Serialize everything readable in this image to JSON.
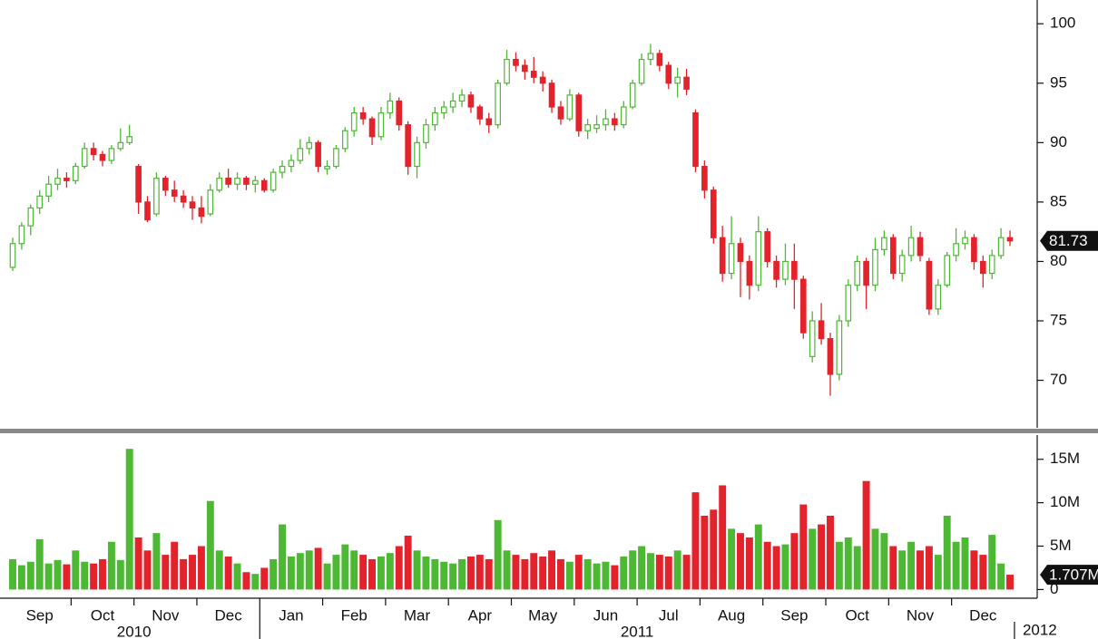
{
  "chart_data": {
    "type": "candlestick",
    "up_color": "#4db833",
    "down_color": "#e3222b",
    "categories": [
      "Sep",
      "Sep",
      "Sep",
      "Sep",
      "Sep",
      "Sep",
      "Sep",
      "Oct",
      "Oct",
      "Oct",
      "Oct",
      "Oct",
      "Oct",
      "Oct",
      "Nov",
      "Nov",
      "Nov",
      "Nov",
      "Nov",
      "Nov",
      "Nov",
      "Dec",
      "Dec",
      "Dec",
      "Dec",
      "Dec",
      "Dec",
      "Dec",
      "Jan",
      "Jan",
      "Jan",
      "Jan",
      "Jan",
      "Jan",
      "Jan",
      "Feb",
      "Feb",
      "Feb",
      "Feb",
      "Feb",
      "Feb",
      "Feb",
      "Mar",
      "Mar",
      "Mar",
      "Mar",
      "Mar",
      "Mar",
      "Mar",
      "Apr",
      "Apr",
      "Apr",
      "Apr",
      "Apr",
      "Apr",
      "Apr",
      "May",
      "May",
      "May",
      "May",
      "May",
      "May",
      "May",
      "Jun",
      "Jun",
      "Jun",
      "Jun",
      "Jun",
      "Jun",
      "Jun",
      "Jul",
      "Jul",
      "Jul",
      "Jul",
      "Jul",
      "Jul",
      "Jul",
      "Aug",
      "Aug",
      "Aug",
      "Aug",
      "Aug",
      "Aug",
      "Aug",
      "Sep",
      "Sep",
      "Sep",
      "Sep",
      "Sep",
      "Sep",
      "Sep",
      "Oct",
      "Oct",
      "Oct",
      "Oct",
      "Oct",
      "Oct",
      "Oct",
      "Nov",
      "Nov",
      "Nov",
      "Nov",
      "Nov",
      "Nov",
      "Nov",
      "Dec",
      "Dec",
      "Dec",
      "Dec",
      "Dec",
      "Dec",
      "Dec"
    ],
    "years": [
      "2010",
      "2011",
      "2012"
    ],
    "ohlc": [
      [
        79.5,
        82,
        79.2,
        81.5
      ],
      [
        81.5,
        83.3,
        81,
        83
      ],
      [
        83,
        84.8,
        82.2,
        84.5
      ],
      [
        84.5,
        86,
        84,
        85.5
      ],
      [
        85.5,
        87.2,
        85,
        86.5
      ],
      [
        86.5,
        87.8,
        86,
        87
      ],
      [
        87,
        87.5,
        86.2,
        86.8
      ],
      [
        86.8,
        88.3,
        86.5,
        88
      ],
      [
        88,
        90,
        87.8,
        89.5
      ],
      [
        89.5,
        90,
        88.5,
        89
      ],
      [
        89,
        89.3,
        88,
        88.5
      ],
      [
        88.5,
        89.8,
        88.2,
        89.5
      ],
      [
        89.5,
        91.2,
        89.3,
        90
      ],
      [
        90,
        91.5,
        89.8,
        90.5
      ],
      [
        88,
        88.2,
        84,
        85
      ],
      [
        85,
        85.5,
        83.3,
        83.5
      ],
      [
        84,
        87.5,
        83.8,
        87
      ],
      [
        87,
        87.2,
        85.5,
        86
      ],
      [
        86,
        86.8,
        85,
        85.5
      ],
      [
        85.5,
        86,
        84.5,
        85
      ],
      [
        85,
        85.5,
        83.5,
        84.5
      ],
      [
        84.5,
        85.5,
        83.2,
        83.8
      ],
      [
        84,
        86.5,
        83.8,
        86
      ],
      [
        86,
        87.5,
        85.8,
        87
      ],
      [
        87,
        87.8,
        86.2,
        86.5
      ],
      [
        86.5,
        87.5,
        86,
        87
      ],
      [
        87,
        87.2,
        86,
        86.5
      ],
      [
        86.5,
        87.2,
        85.8,
        86.8
      ],
      [
        86.8,
        87,
        85.8,
        86
      ],
      [
        86,
        87.8,
        85.8,
        87.5
      ],
      [
        87.5,
        88.5,
        87,
        88
      ],
      [
        88,
        89,
        87.5,
        88.5
      ],
      [
        88.5,
        90.3,
        88.2,
        89.5
      ],
      [
        89.5,
        90.5,
        89,
        90
      ],
      [
        90,
        90.2,
        87.5,
        88
      ],
      [
        87.8,
        88.5,
        87.3,
        88
      ],
      [
        88,
        89.8,
        87.8,
        89.5
      ],
      [
        89.5,
        91.3,
        89.2,
        91
      ],
      [
        91,
        93,
        90.5,
        92.5
      ],
      [
        92.5,
        93,
        91.5,
        92
      ],
      [
        92,
        92.2,
        89.8,
        90.5
      ],
      [
        90.5,
        93,
        90.2,
        92.5
      ],
      [
        92.5,
        94.2,
        92,
        93.5
      ],
      [
        93.5,
        93.8,
        91,
        91.5
      ],
      [
        91.5,
        91.8,
        87.3,
        88
      ],
      [
        88,
        90.5,
        87,
        90
      ],
      [
        90,
        92,
        89.5,
        91.5
      ],
      [
        91.5,
        93,
        91,
        92.5
      ],
      [
        92.5,
        93.5,
        92,
        93
      ],
      [
        93,
        94.2,
        92.5,
        93.5
      ],
      [
        93.5,
        94.5,
        93,
        94
      ],
      [
        94,
        94.3,
        92.5,
        93
      ],
      [
        93,
        93.2,
        91.5,
        92
      ],
      [
        92,
        92.5,
        90.8,
        91.5
      ],
      [
        91.5,
        95.3,
        91.2,
        95
      ],
      [
        95,
        97.8,
        94.8,
        97
      ],
      [
        97,
        97.6,
        96,
        96.5
      ],
      [
        96.5,
        97,
        95.3,
        96
      ],
      [
        96,
        97.2,
        95,
        95.5
      ],
      [
        95.5,
        96,
        94.3,
        95
      ],
      [
        95,
        95.3,
        92.5,
        93
      ],
      [
        93,
        93.5,
        91.5,
        92
      ],
      [
        92,
        94.5,
        91.8,
        94
      ],
      [
        94,
        94.2,
        90.5,
        91
      ],
      [
        91,
        92,
        90.3,
        91.5
      ],
      [
        91.2,
        92.3,
        90.8,
        91.5
      ],
      [
        91.5,
        92.8,
        91,
        92
      ],
      [
        92,
        92.5,
        91,
        91.5
      ],
      [
        91.5,
        93.5,
        91.2,
        93
      ],
      [
        93,
        95.3,
        92.8,
        95
      ],
      [
        95,
        97.5,
        94.8,
        97
      ],
      [
        97,
        98.3,
        96.5,
        97.5
      ],
      [
        97.5,
        97.8,
        96,
        96.5
      ],
      [
        96.5,
        96.8,
        94.5,
        95
      ],
      [
        95,
        96.3,
        93.8,
        95.5
      ],
      [
        95.5,
        96.2,
        94,
        94.5
      ],
      [
        92.5,
        92.8,
        87.5,
        88
      ],
      [
        88,
        88.5,
        85.3,
        86
      ],
      [
        86,
        86.3,
        81.5,
        82
      ],
      [
        82,
        83,
        78.3,
        79
      ],
      [
        79,
        83.8,
        78.5,
        81.5
      ],
      [
        81.5,
        82,
        77,
        80
      ],
      [
        80,
        80.5,
        76.8,
        78
      ],
      [
        78,
        83.8,
        77.5,
        82.5
      ],
      [
        82.5,
        82.8,
        79.5,
        80
      ],
      [
        80,
        80.5,
        77.8,
        78.5
      ],
      [
        78.5,
        81.5,
        78,
        80
      ],
      [
        80,
        81.5,
        76,
        78.5
      ],
      [
        78.5,
        78.8,
        73.5,
        74
      ],
      [
        72,
        75.8,
        71.5,
        75
      ],
      [
        75,
        76.5,
        73,
        73.5
      ],
      [
        73.5,
        74,
        68.7,
        70.5
      ],
      [
        70.5,
        75.5,
        70,
        75
      ],
      [
        75,
        78.5,
        74.5,
        78
      ],
      [
        78,
        80.5,
        77.5,
        80
      ],
      [
        80,
        80.3,
        76,
        78
      ],
      [
        78,
        82,
        77.5,
        81
      ],
      [
        81,
        82.6,
        80.5,
        82
      ],
      [
        82,
        82.3,
        78.5,
        79
      ],
      [
        79,
        81,
        78.3,
        80.5
      ],
      [
        80.5,
        83,
        80,
        82
      ],
      [
        82,
        82.5,
        80,
        80.5
      ],
      [
        80,
        80.3,
        75.5,
        76
      ],
      [
        76,
        78.5,
        75.5,
        78
      ],
      [
        78,
        80.8,
        77.8,
        80.5
      ],
      [
        80.5,
        82.8,
        80,
        81.5
      ],
      [
        81.5,
        82.6,
        81,
        82
      ],
      [
        82,
        82.3,
        79.3,
        80
      ],
      [
        80,
        80.5,
        77.8,
        79
      ],
      [
        79,
        81,
        78.5,
        80.5
      ],
      [
        80.5,
        82.8,
        80.2,
        82
      ],
      [
        82,
        82.6,
        81.3,
        81.73
      ]
    ],
    "ylim": [
      66,
      102
    ],
    "yticks": [
      70,
      75,
      80,
      85,
      90,
      95,
      100
    ],
    "volume": {
      "values": [
        3500000,
        2800000,
        3200000,
        5800000,
        3000000,
        3400000,
        2900000,
        4500000,
        3200000,
        3000000,
        3500000,
        5500000,
        3400000,
        16200000,
        6000000,
        4500000,
        6500000,
        4000000,
        5500000,
        3500000,
        4000000,
        5000000,
        10200000,
        4500000,
        3800000,
        3000000,
        2000000,
        1800000,
        2500000,
        3500000,
        7500000,
        3800000,
        4200000,
        4500000,
        4800000,
        3000000,
        4000000,
        5200000,
        4500000,
        4000000,
        3500000,
        3800000,
        4200000,
        5000000,
        6200000,
        4500000,
        3800000,
        3500000,
        3200000,
        3000000,
        3500000,
        3800000,
        4000000,
        3500000,
        8000000,
        4500000,
        4000000,
        3500000,
        4200000,
        3800000,
        4500000,
        3500000,
        3200000,
        4000000,
        3500000,
        3000000,
        3200000,
        2800000,
        3800000,
        4500000,
        5000000,
        4200000,
        4000000,
        3800000,
        4500000,
        4000000,
        11200000,
        8500000,
        9200000,
        12000000,
        7000000,
        6500000,
        6000000,
        7500000,
        5500000,
        5000000,
        5200000,
        6500000,
        9800000,
        7000000,
        7500000,
        8500000,
        5500000,
        6000000,
        5000000,
        12500000,
        7000000,
        6500000,
        5000000,
        4500000,
        5500000,
        4500000,
        5000000,
        4000000,
        8500000,
        5500000,
        6000000,
        4500000,
        4000000,
        6300000,
        3000000,
        1707000
      ],
      "last_label": "1.707M",
      "ylim": [
        -1000000,
        18000000
      ],
      "yticks": [
        0,
        {
          "value": 5000000,
          "label": "5M"
        },
        {
          "value": 10000000,
          "label": "10M"
        },
        {
          "value": 15000000,
          "label": "15M"
        }
      ]
    }
  }
}
